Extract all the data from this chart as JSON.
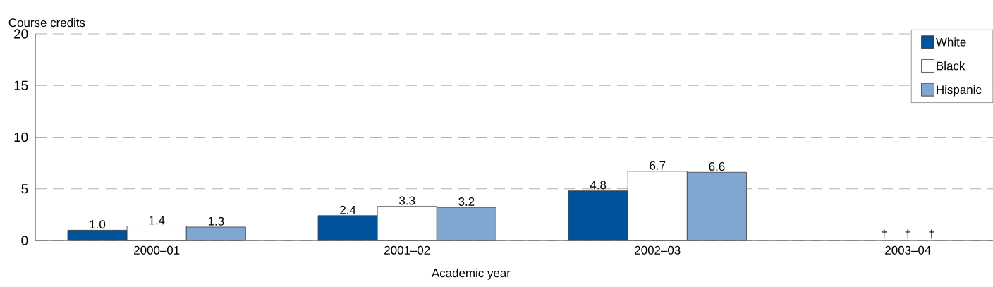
{
  "chart_data": {
    "type": "bar",
    "xlabel": "Academic year",
    "ylabel": "Course credits",
    "categories": [
      "2000–01",
      "2001–02",
      "2002–03",
      "2003–04"
    ],
    "series": [
      {
        "name": "White",
        "color": "#00529b",
        "values": [
          1.0,
          2.4,
          4.8,
          null
        ],
        "value_labels": [
          "1.0",
          "2.4",
          "4.8",
          "†"
        ]
      },
      {
        "name": "Black",
        "color": "#ffffff",
        "values": [
          1.4,
          3.3,
          6.7,
          null
        ],
        "value_labels": [
          "1.4",
          "3.3",
          "6.7",
          "†"
        ]
      },
      {
        "name": "Hispanic",
        "color": "#7fa7cf",
        "values": [
          1.3,
          3.2,
          6.6,
          null
        ],
        "value_labels": [
          "1.3",
          "3.2",
          "6.6",
          "†"
        ]
      }
    ],
    "ylim": [
      0,
      20
    ],
    "yticks": [
      0,
      5,
      10,
      15,
      20
    ],
    "grid": "y",
    "legend": "top right"
  }
}
